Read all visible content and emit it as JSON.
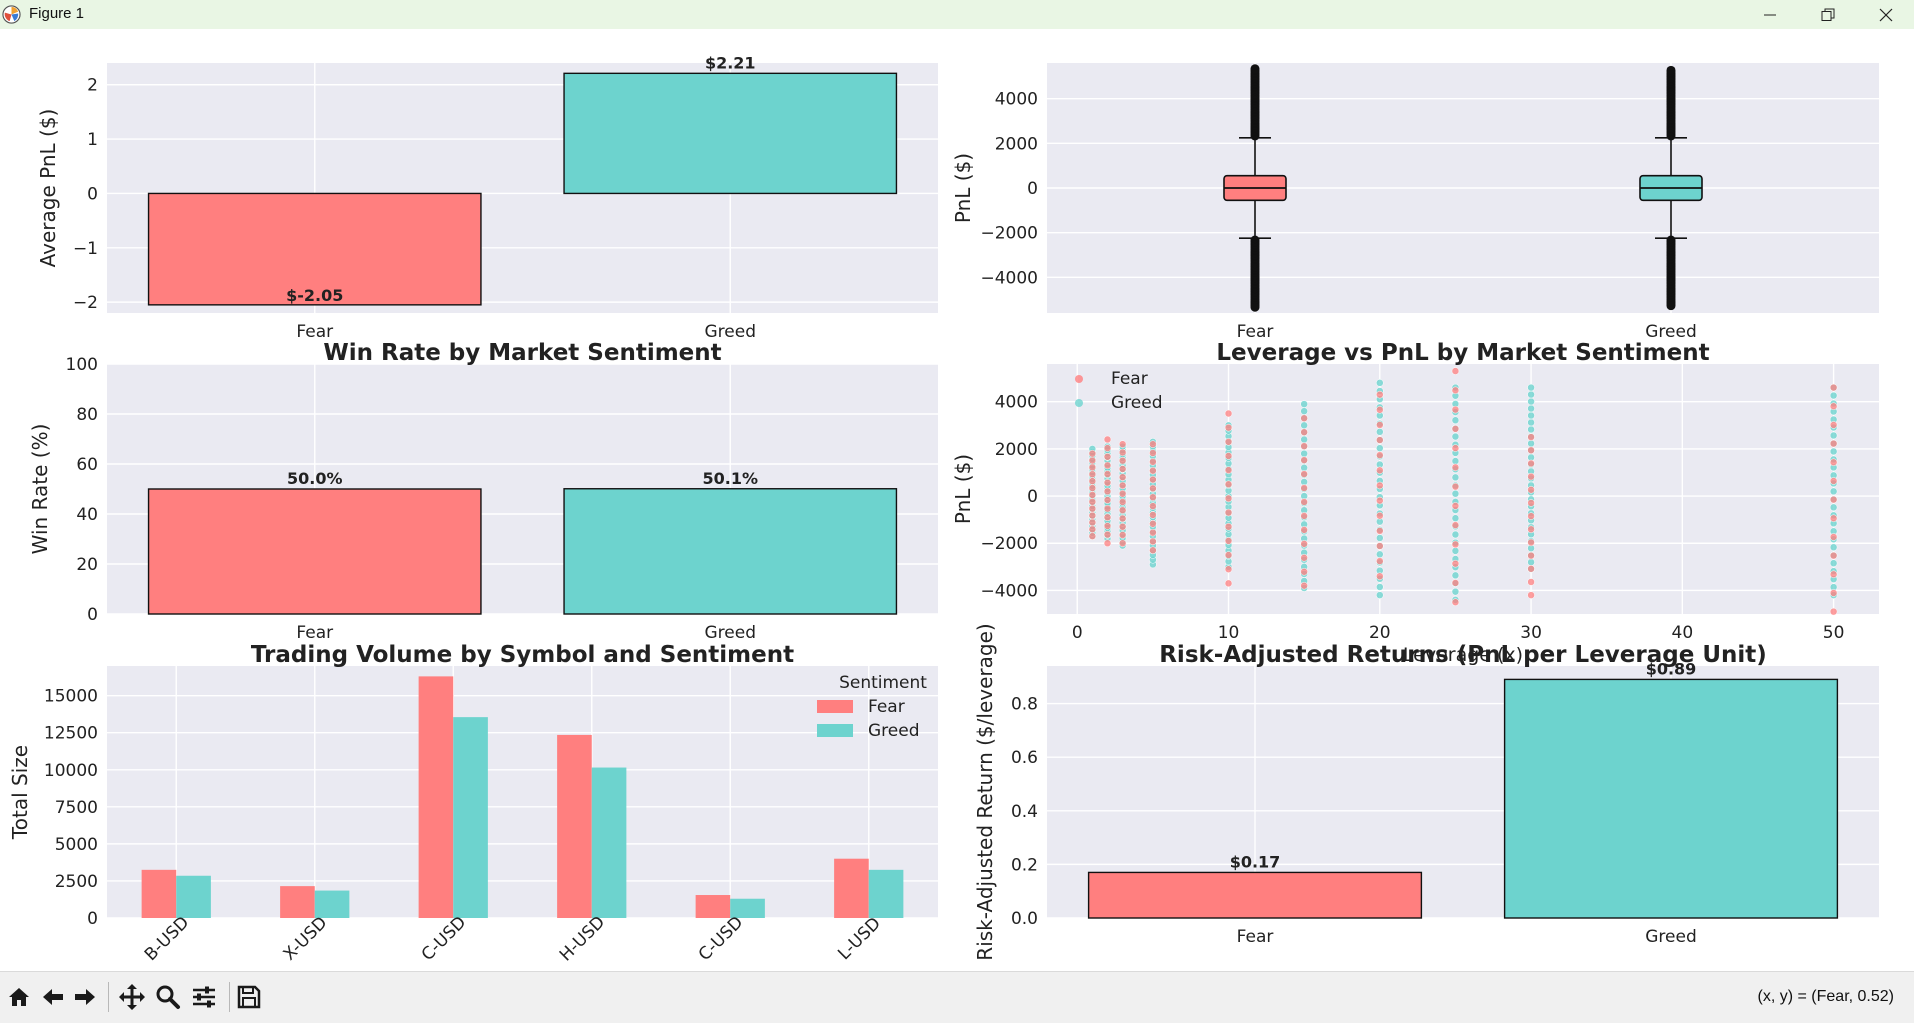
{
  "window": {
    "title": "Figure 1",
    "controls": [
      "minimize",
      "maximize",
      "close"
    ]
  },
  "toolbar": {
    "buttons": [
      "home-icon",
      "back-icon",
      "forward-icon",
      "pan-icon",
      "zoom-icon",
      "configure-subplots-icon",
      "save-icon"
    ],
    "coords_text": "(x, y) = (Fear, 0.52)"
  },
  "colors": {
    "fear": "#ff7f7f",
    "greed": "#6dd3ce",
    "axes_bg": "#eaeaf2",
    "grid": "#ffffff"
  },
  "chart_data": [
    {
      "id": "avg-pnl",
      "type": "bar",
      "title": "",
      "categories": [
        "Fear",
        "Greed"
      ],
      "values": [
        -2.05,
        2.21
      ],
      "value_labels": [
        "$-2.05",
        "$2.21"
      ],
      "ylabel": "Average PnL ($)",
      "ylim": [
        -2.2,
        2.4
      ],
      "yticks": [
        -2,
        -1,
        0,
        1,
        2
      ],
      "ytick_labels": [
        "−2",
        "−1",
        "0",
        "1",
        "2"
      ]
    },
    {
      "id": "pnl-distribution",
      "type": "box",
      "title": "",
      "categories": [
        "Fear",
        "Greed"
      ],
      "ylabel": "PnL ($)",
      "ylim": [
        -5600,
        5600
      ],
      "yticks": [
        -4000,
        -2000,
        0,
        2000,
        4000
      ],
      "ytick_labels": [
        "−4000",
        "−2000",
        "0",
        "2000",
        "4000"
      ],
      "boxes": [
        {
          "name": "Fear",
          "q1": -550,
          "median": 0,
          "q3": 550,
          "whisker_low": -2250,
          "whisker_high": 2250,
          "outlier_min": -5400,
          "outlier_max": 5400
        },
        {
          "name": "Greed",
          "q1": -550,
          "median": 0,
          "q3": 550,
          "whisker_low": -2250,
          "whisker_high": 2250,
          "outlier_min": -5300,
          "outlier_max": 5300
        }
      ]
    },
    {
      "id": "win-rate",
      "type": "bar",
      "title": "Win Rate by Market Sentiment",
      "categories": [
        "Fear",
        "Greed"
      ],
      "values": [
        50.0,
        50.1
      ],
      "value_labels": [
        "50.0%",
        "50.1%"
      ],
      "ylabel": "Win Rate (%)",
      "ylim": [
        0,
        100
      ],
      "yticks": [
        0,
        20,
        40,
        60,
        80,
        100
      ],
      "ytick_labels": [
        "0",
        "20",
        "40",
        "60",
        "80",
        "100"
      ]
    },
    {
      "id": "leverage-vs-pnl",
      "type": "scatter",
      "title": "Leverage vs PnL by Market Sentiment",
      "xlabel": "Leverage (x)",
      "ylabel": "PnL ($)",
      "xlim": [
        -2,
        53
      ],
      "ylim": [
        -5000,
        5600
      ],
      "xticks": [
        0,
        10,
        20,
        30,
        40,
        50
      ],
      "xtick_labels": [
        "0",
        "10",
        "20",
        "30",
        "40",
        "50"
      ],
      "yticks": [
        -4000,
        -2000,
        0,
        2000,
        4000
      ],
      "ytick_labels": [
        "−4000",
        "−2000",
        "0",
        "2000",
        "4000"
      ],
      "legend": {
        "placement": "upper-left",
        "entries": [
          "Fear",
          "Greed"
        ]
      },
      "leverage_levels": [
        {
          "x": 1,
          "fear": [
            -1700,
            1800
          ],
          "greed": [
            -1700,
            2000
          ]
        },
        {
          "x": 2,
          "fear": [
            -2000,
            2400
          ],
          "greed": [
            -1800,
            2100
          ]
        },
        {
          "x": 3,
          "fear": [
            -2000,
            2200
          ],
          "greed": [
            -2100,
            2100
          ]
        },
        {
          "x": 5,
          "fear": [
            -2300,
            2200
          ],
          "greed": [
            -2900,
            2300
          ]
        },
        {
          "x": 10,
          "fear": [
            -3700,
            3500
          ],
          "greed": [
            -3000,
            3000
          ]
        },
        {
          "x": 15,
          "fear": [
            -3800,
            3300
          ],
          "greed": [
            -3900,
            3900
          ]
        },
        {
          "x": 20,
          "fear": [
            -3400,
            4300
          ],
          "greed": [
            -4200,
            4800
          ]
        },
        {
          "x": 25,
          "fear": [
            -4500,
            5300
          ],
          "greed": [
            -4400,
            4600
          ]
        },
        {
          "x": 30,
          "fear": [
            -4200,
            2500
          ],
          "greed": [
            -3100,
            4600
          ]
        },
        {
          "x": 50,
          "fear": [
            -4900,
            4600
          ],
          "greed": [
            -4200,
            4600
          ]
        }
      ]
    },
    {
      "id": "volume-by-symbol",
      "type": "bar",
      "title": "Trading Volume by Symbol and Sentiment",
      "categories": [
        "B-USD",
        "X-USD",
        "C-USD",
        "H-USD",
        "C-USD",
        "L-USD"
      ],
      "series": [
        {
          "name": "Fear",
          "values": [
            3250,
            2150,
            16300,
            12350,
            1550,
            4000
          ]
        },
        {
          "name": "Greed",
          "values": [
            2850,
            1850,
            13550,
            10150,
            1300,
            3250
          ]
        }
      ],
      "ylabel": "Total Size",
      "ylim": [
        0,
        17000
      ],
      "yticks": [
        0,
        2500,
        5000,
        7500,
        10000,
        12500,
        15000
      ],
      "ytick_labels": [
        "0",
        "2500",
        "5000",
        "7500",
        "10000",
        "12500",
        "15000"
      ],
      "legend": {
        "title": "Sentiment",
        "placement": "upper-right",
        "entries": [
          "Fear",
          "Greed"
        ]
      }
    },
    {
      "id": "risk-adjusted",
      "type": "bar",
      "title": "Risk-Adjusted Returns (PnL per Leverage Unit)",
      "categories": [
        "Fear",
        "Greed"
      ],
      "values": [
        0.17,
        0.89
      ],
      "value_labels": [
        "$0.17",
        "$0.89"
      ],
      "ylabel": "Risk-Adjusted Return ($/leverage)",
      "ylim": [
        0,
        0.94
      ],
      "yticks": [
        0.0,
        0.2,
        0.4,
        0.6,
        0.8
      ],
      "ytick_labels": [
        "0.0",
        "0.2",
        "0.4",
        "0.6",
        "0.8"
      ]
    }
  ]
}
